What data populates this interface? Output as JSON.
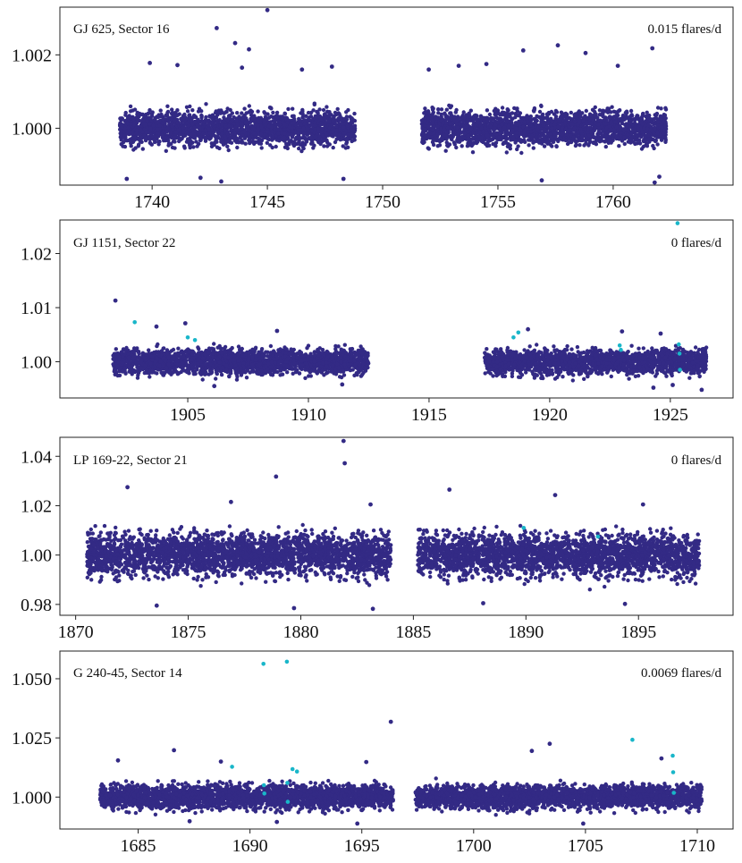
{
  "chart_data": [
    {
      "type": "scatter",
      "label": "GJ 625, Sector 16",
      "rate": "0.015 flares/d",
      "xlim": [
        1736,
        1765.2
      ],
      "ylim": [
        0.99845,
        1.0033
      ],
      "xticks": [
        1740,
        1745,
        1750,
        1755,
        1760
      ],
      "xtick_labels": [
        "1740",
        "1745",
        "1750",
        "1755",
        "1760"
      ],
      "yticks": [
        1.0,
        1.002
      ],
      "ytick_labels": [
        "1.000",
        "1.002"
      ],
      "colors": {
        "quiescent": "#332a85",
        "flare": "#19b6c9"
      },
      "segments": [
        {
          "x_start": 1738.6,
          "x_end": 1748.8,
          "center": 1.0,
          "half_width": 0.00078
        },
        {
          "x_start": 1751.7,
          "x_end": 1762.3,
          "center": 1.0,
          "half_width": 0.00078
        }
      ],
      "outliers": [
        [
          1745.0,
          1.00322
        ],
        [
          1742.8,
          1.00273
        ],
        [
          1743.6,
          1.00232
        ],
        [
          1744.2,
          1.00215
        ],
        [
          1756.1,
          1.00212
        ],
        [
          1757.6,
          1.00226
        ],
        [
          1761.7,
          1.00218
        ],
        [
          1758.8,
          1.00205
        ],
        [
          1743.9,
          1.00165
        ],
        [
          1752.0,
          1.0016
        ],
        [
          1739.9,
          1.00178
        ],
        [
          1747.8,
          1.00168
        ],
        [
          1753.3,
          1.0017
        ],
        [
          1754.5,
          1.00175
        ],
        [
          1741.1,
          1.00172
        ],
        [
          1760.2,
          1.0017
        ],
        [
          1746.5,
          1.0016
        ],
        [
          1743.0,
          0.99855
        ],
        [
          1756.9,
          0.99858
        ],
        [
          1761.8,
          0.99852
        ],
        [
          1738.9,
          0.99862
        ],
        [
          1742.1,
          0.99865
        ],
        [
          1748.3,
          0.99862
        ],
        [
          1762.0,
          0.99868
        ]
      ],
      "flares": []
    },
    {
      "type": "scatter",
      "label": "GJ 1151, Sector 22",
      "rate": "0 flares/d",
      "xlim": [
        1899.7,
        1927.6
      ],
      "ylim": [
        0.9933,
        1.0262
      ],
      "xticks": [
        1905,
        1910,
        1915,
        1920,
        1925
      ],
      "xtick_labels": [
        "1905",
        "1910",
        "1915",
        "1920",
        "1925"
      ],
      "yticks": [
        1.0,
        1.01,
        1.02
      ],
      "ytick_labels": [
        "1.00",
        "1.01",
        "1.02"
      ],
      "colors": {
        "quiescent": "#332a85",
        "flare": "#19b6c9"
      },
      "segments": [
        {
          "x_start": 1901.9,
          "x_end": 1912.5,
          "center": 1.0,
          "half_width": 0.0039
        },
        {
          "x_start": 1917.3,
          "x_end": 1926.5,
          "center": 1.0,
          "half_width": 0.0039
        }
      ],
      "outliers": [
        [
          1902.0,
          1.0113
        ],
        [
          1903.7,
          1.0065
        ],
        [
          1904.9,
          1.0071
        ],
        [
          1908.7,
          1.0057
        ],
        [
          1919.1,
          1.006
        ],
        [
          1923.0,
          1.0056
        ],
        [
          1924.6,
          1.0052
        ],
        [
          1926.3,
          0.9948
        ],
        [
          1924.3,
          0.9952
        ],
        [
          1925.1,
          0.9957
        ],
        [
          1906.1,
          0.9955
        ],
        [
          1911.4,
          0.9958
        ]
      ],
      "flares": [
        [
          1925.3,
          1.0256
        ],
        [
          1902.8,
          1.0073
        ],
        [
          1905.0,
          1.0045
        ],
        [
          1905.3,
          1.004
        ],
        [
          1918.7,
          1.0054
        ],
        [
          1918.5,
          1.0045
        ],
        [
          1922.9,
          1.003
        ],
        [
          1922.95,
          1.0022
        ],
        [
          1925.35,
          1.0032
        ],
        [
          1925.38,
          1.0015
        ],
        [
          1925.4,
          0.9985
        ]
      ]
    },
    {
      "type": "scatter",
      "label": "LP 169-22, Sector 21",
      "rate": "0 flares/d",
      "xlim": [
        1869.3,
        1899.2
      ],
      "ylim": [
        0.9756,
        1.0477
      ],
      "xticks": [
        1870,
        1875,
        1880,
        1885,
        1890,
        1895
      ],
      "xtick_labels": [
        "1870",
        "1875",
        "1880",
        "1885",
        "1890",
        "1895"
      ],
      "yticks": [
        0.98,
        1.0,
        1.02,
        1.04
      ],
      "ytick_labels": [
        "0.98",
        "1.00",
        "1.02",
        "1.04"
      ],
      "colors": {
        "quiescent": "#332a85",
        "flare": "#19b6c9"
      },
      "segments": [
        {
          "x_start": 1870.5,
          "x_end": 1884.0,
          "center": 1.0,
          "half_width": 0.0148
        },
        {
          "x_start": 1885.2,
          "x_end": 1897.7,
          "center": 1.0,
          "half_width": 0.0148
        }
      ],
      "outliers": [
        [
          1881.9,
          1.0462
        ],
        [
          1881.95,
          1.0372
        ],
        [
          1878.9,
          1.0318
        ],
        [
          1872.3,
          1.0275
        ],
        [
          1886.6,
          1.0265
        ],
        [
          1891.3,
          1.0243
        ],
        [
          1876.9,
          1.0215
        ],
        [
          1883.1,
          1.0205
        ],
        [
          1895.2,
          1.0205
        ],
        [
          1879.7,
          0.9785
        ],
        [
          1883.2,
          0.9782
        ],
        [
          1873.6,
          0.9795
        ],
        [
          1888.1,
          0.9805
        ],
        [
          1894.4,
          0.9802
        ]
      ],
      "flares": [
        [
          1889.9,
          1.011
        ],
        [
          1893.2,
          1.0075
        ]
      ]
    },
    {
      "type": "scatter",
      "label": "G 240-45, Sector 14",
      "rate": "0.0069 flares/d",
      "xlim": [
        1681.5,
        1711.6
      ],
      "ylim": [
        0.9865,
        1.0617
      ],
      "xticks": [
        1685,
        1690,
        1695,
        1700,
        1705,
        1710
      ],
      "xtick_labels": [
        "1685",
        "1690",
        "1695",
        "1700",
        "1705",
        "1710"
      ],
      "yticks": [
        1.0,
        1.025,
        1.05
      ],
      "ytick_labels": [
        "1.000",
        "1.025",
        "1.050"
      ],
      "colors": {
        "quiescent": "#332a85",
        "flare": "#19b6c9"
      },
      "segments": [
        {
          "x_start": 1683.3,
          "x_end": 1696.4,
          "center": 1.0,
          "half_width": 0.0085
        },
        {
          "x_start": 1697.4,
          "x_end": 1710.2,
          "center": 1.0,
          "half_width": 0.0085
        }
      ],
      "outliers": [
        [
          1696.3,
          1.0318
        ],
        [
          1686.6,
          1.0198
        ],
        [
          1703.4,
          1.0225
        ],
        [
          1702.6,
          1.0195
        ],
        [
          1708.4,
          1.0163
        ],
        [
          1684.1,
          1.0155
        ],
        [
          1688.7,
          1.015
        ],
        [
          1695.2,
          1.0148
        ],
        [
          1704.9,
          0.9888
        ],
        [
          1691.2,
          0.9895
        ],
        [
          1694.8,
          0.9888
        ],
        [
          1687.3,
          0.9898
        ]
      ],
      "flares": [
        [
          1690.6,
          1.0563
        ],
        [
          1691.65,
          1.0572
        ],
        [
          1707.1,
          1.0242
        ],
        [
          1708.9,
          1.0175
        ],
        [
          1689.2,
          1.0128
        ],
        [
          1691.9,
          1.0118
        ],
        [
          1692.1,
          1.0108
        ],
        [
          1690.62,
          1.005
        ],
        [
          1690.64,
          1.0015
        ],
        [
          1691.67,
          1.006
        ],
        [
          1691.69,
          0.998
        ],
        [
          1708.92,
          1.0105
        ],
        [
          1708.95,
          1.0018
        ]
      ]
    }
  ]
}
